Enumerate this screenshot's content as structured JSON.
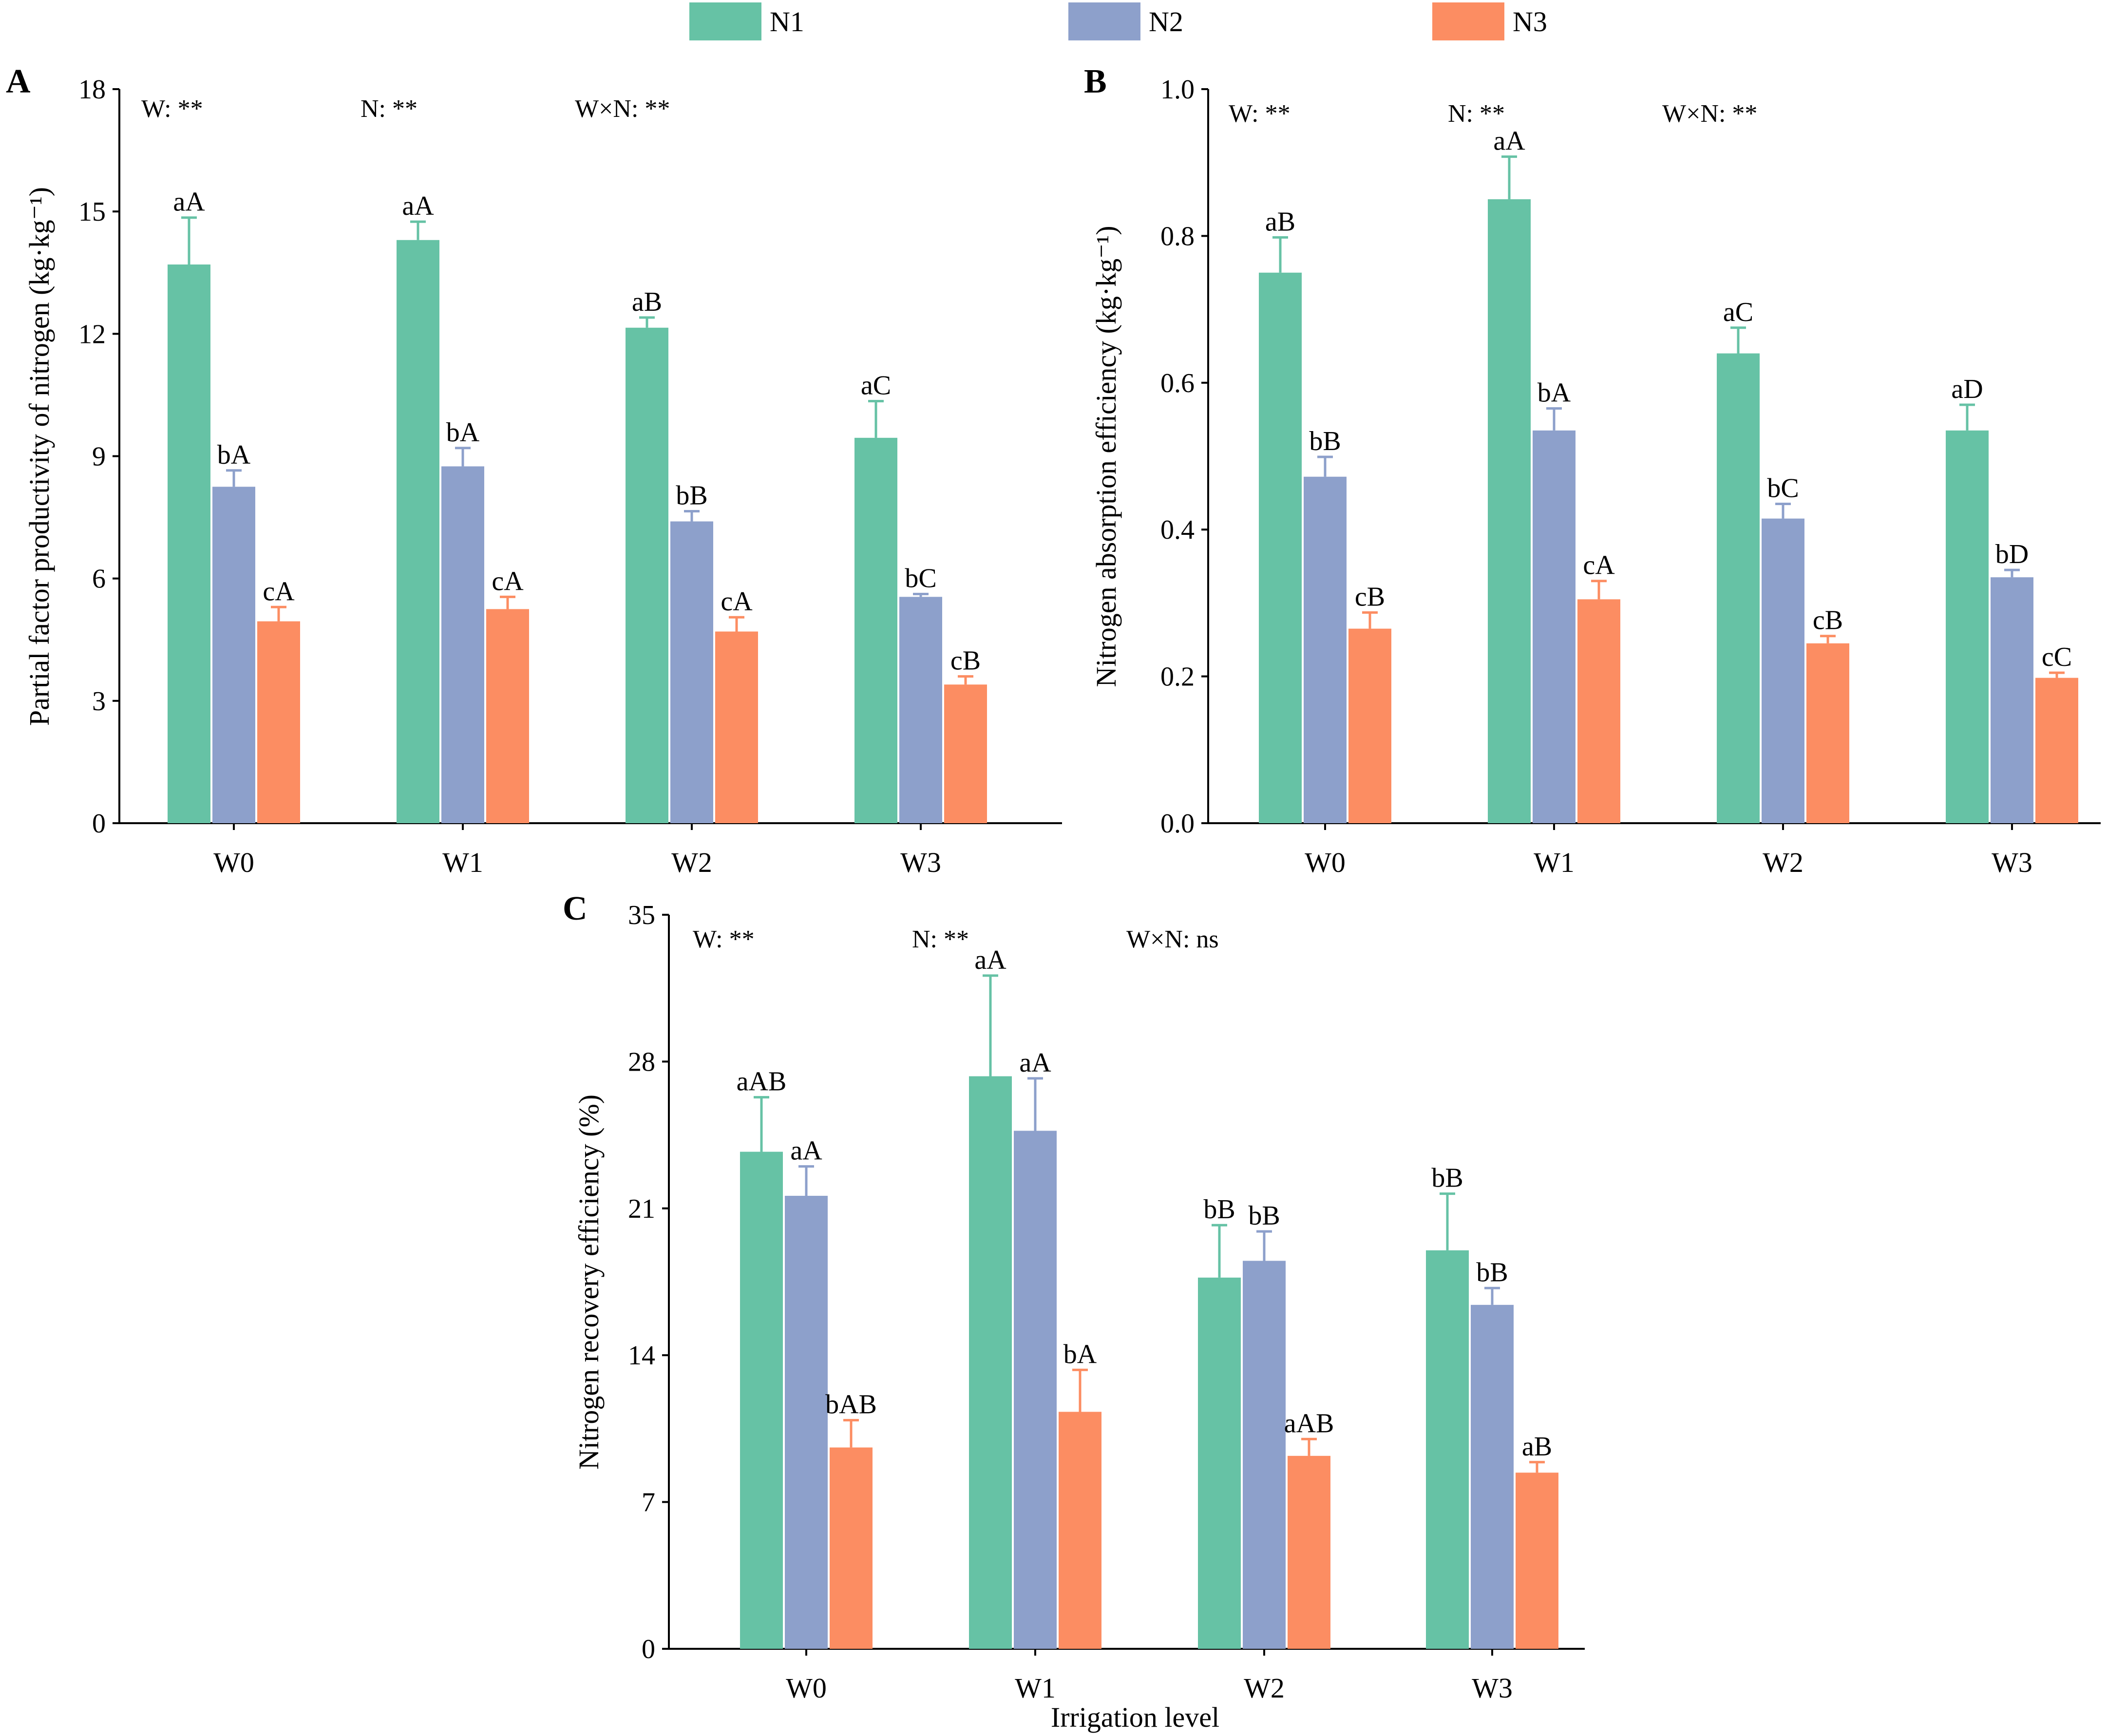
{
  "legend": [
    {
      "name": "N1",
      "color": "#66c2a5"
    },
    {
      "name": "N2",
      "color": "#8da0cb"
    },
    {
      "name": "N3",
      "color": "#fc8d62"
    }
  ],
  "chart_data": [
    {
      "panel": "A",
      "type": "bar",
      "ylabel": "Partial factor productivity of nitrogen (kg·kg⁻¹)",
      "xlabel": "",
      "ylim": [
        0,
        18
      ],
      "yticks": [
        "0",
        "3",
        "6",
        "9",
        "12",
        "15",
        "18"
      ],
      "categories": [
        "W0",
        "W1",
        "W2",
        "W3"
      ],
      "annotations": [
        "W: **",
        "N: **",
        "W×N: **"
      ],
      "series": [
        {
          "name": "N1",
          "values": [
            13.7,
            14.3,
            12.15,
            9.45
          ],
          "errors": [
            1.15,
            0.45,
            0.25,
            0.9
          ],
          "labels": [
            "aA",
            "aA",
            "aB",
            "aC"
          ]
        },
        {
          "name": "N2",
          "values": [
            8.25,
            8.75,
            7.4,
            5.55
          ],
          "errors": [
            0.4,
            0.45,
            0.25,
            0.07
          ],
          "labels": [
            "bA",
            "bA",
            "bB",
            "bC"
          ]
        },
        {
          "name": "N3",
          "values": [
            4.95,
            5.25,
            4.7,
            3.4
          ],
          "errors": [
            0.35,
            0.3,
            0.35,
            0.2
          ],
          "labels": [
            "cA",
            "cA",
            "cA",
            "cB"
          ]
        }
      ]
    },
    {
      "panel": "B",
      "type": "bar",
      "ylabel": "Nitrogen absorption efficiency (kg·kg⁻¹)",
      "xlabel": "",
      "ylim": [
        0,
        1.0
      ],
      "yticks": [
        "0.0",
        "0.2",
        "0.4",
        "0.6",
        "0.8",
        "1.0"
      ],
      "categories": [
        "W0",
        "W1",
        "W2",
        "W3"
      ],
      "annotations": [
        "W: **",
        "N: **",
        "W×N: **"
      ],
      "series": [
        {
          "name": "N1",
          "values": [
            0.75,
            0.85,
            0.64,
            0.535
          ],
          "errors": [
            0.048,
            0.058,
            0.035,
            0.035
          ],
          "labels": [
            "aB",
            "aA",
            "aC",
            "aD"
          ]
        },
        {
          "name": "N2",
          "values": [
            0.472,
            0.535,
            0.415,
            0.335
          ],
          "errors": [
            0.027,
            0.03,
            0.02,
            0.01
          ],
          "labels": [
            "bB",
            "bA",
            "bC",
            "bD"
          ]
        },
        {
          "name": "N3",
          "values": [
            0.265,
            0.305,
            0.245,
            0.198
          ],
          "errors": [
            0.022,
            0.025,
            0.01,
            0.007
          ],
          "labels": [
            "cB",
            "cA",
            "cB",
            "cC"
          ]
        }
      ]
    },
    {
      "panel": "C",
      "type": "bar",
      "ylabel": "Nitrogen recovery efficiency (%)",
      "xlabel": "Irrigation level",
      "ylim": [
        0,
        35
      ],
      "yticks": [
        "0",
        "7",
        "14",
        "21",
        "28",
        "35"
      ],
      "categories": [
        "W0",
        "W1",
        "W2",
        "W3"
      ],
      "annotations": [
        "W: **",
        "N: **",
        "W×N: ns"
      ],
      "series": [
        {
          "name": "N1",
          "values": [
            23.7,
            27.3,
            17.7,
            19.0
          ],
          "errors": [
            2.6,
            4.8,
            2.5,
            2.7
          ],
          "labels": [
            "aAB",
            "aA",
            "bB",
            "bB"
          ]
        },
        {
          "name": "N2",
          "values": [
            21.6,
            24.7,
            18.5,
            16.4
          ],
          "errors": [
            1.4,
            2.5,
            1.4,
            0.8
          ],
          "labels": [
            "aA",
            "aA",
            "bB",
            "bB"
          ]
        },
        {
          "name": "N3",
          "values": [
            9.6,
            11.3,
            9.2,
            8.4
          ],
          "errors": [
            1.3,
            2.0,
            0.8,
            0.5
          ],
          "labels": [
            "bAB",
            "bA",
            "aAB",
            "aB"
          ]
        }
      ]
    }
  ]
}
